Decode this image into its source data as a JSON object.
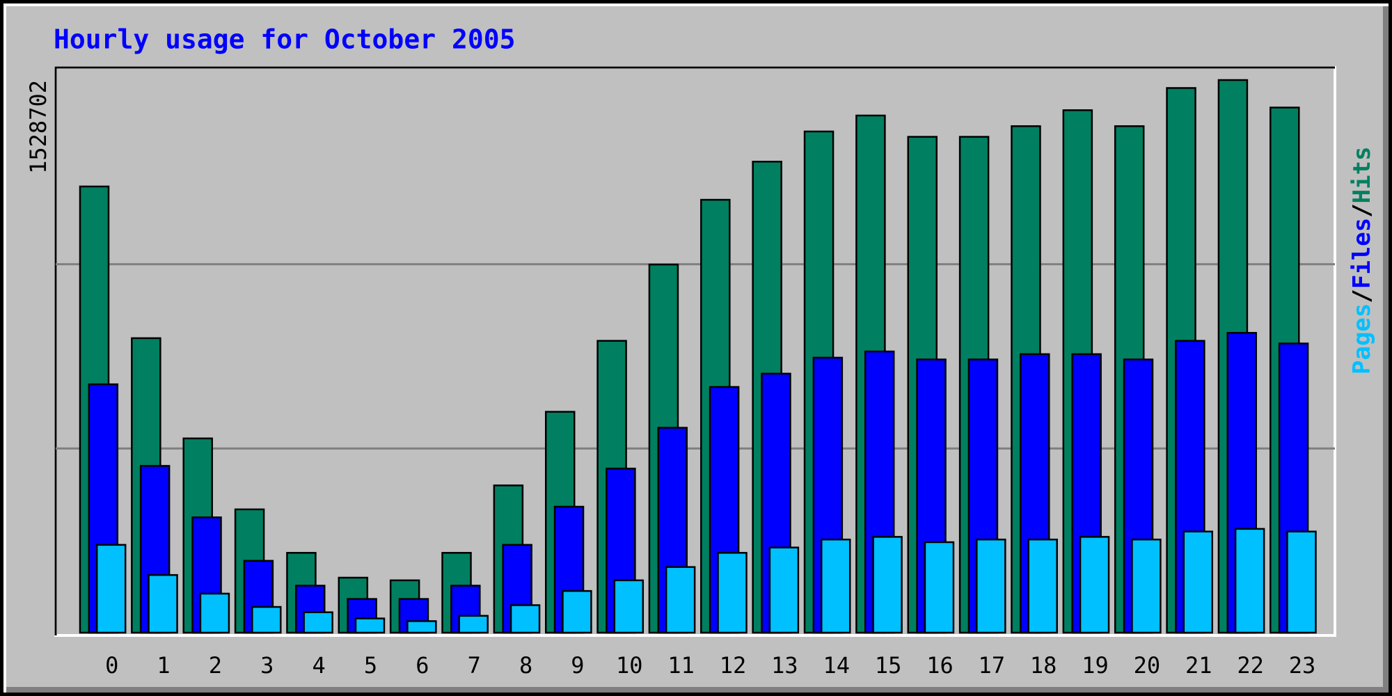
{
  "chart_data": {
    "type": "bar",
    "title": "Hourly usage for October 2005",
    "categories": [
      "0",
      "1",
      "2",
      "3",
      "4",
      "5",
      "6",
      "7",
      "8",
      "9",
      "10",
      "11",
      "12",
      "13",
      "14",
      "15",
      "16",
      "17",
      "18",
      "19",
      "20",
      "21",
      "22",
      "23"
    ],
    "series": [
      {
        "name": "Hits",
        "color": "#008060",
        "values": [
          1234260,
          814660,
          537380,
          341080,
          220840,
          152140,
          144770,
          220840,
          407330,
          611000,
          807300,
          1018330,
          1197450,
          1302970,
          1386400,
          1430570,
          1371670,
          1371670,
          1401120,
          1445290,
          1401120,
          1506630,
          1528702,
          1452650
        ]
      },
      {
        "name": "Files",
        "color": "#0000ff",
        "values": [
          687060,
          461310,
          318990,
          198760,
          130050,
          93240,
          93240,
          130050,
          242930,
          348440,
          453950,
          566830,
          679700,
          716510,
          760680,
          777850,
          755770,
          755770,
          770490,
          770490,
          755770,
          807300,
          829380,
          799940
        ]
      },
      {
        "name": "Pages",
        "color": "#00c0ff",
        "values": [
          242930,
          159500,
          107970,
          71160,
          56440,
          39260,
          31900,
          46620,
          76070,
          115330,
          144770,
          181580,
          220840,
          235560,
          257650,
          265010,
          250290,
          257650,
          257650,
          265010,
          257650,
          279730,
          287090,
          279730
        ]
      }
    ],
    "legend_separator": "/",
    "ylim": [
      0,
      1528702
    ],
    "yticks": [
      1528702
    ],
    "grid_divisions": 3,
    "grid": true
  }
}
